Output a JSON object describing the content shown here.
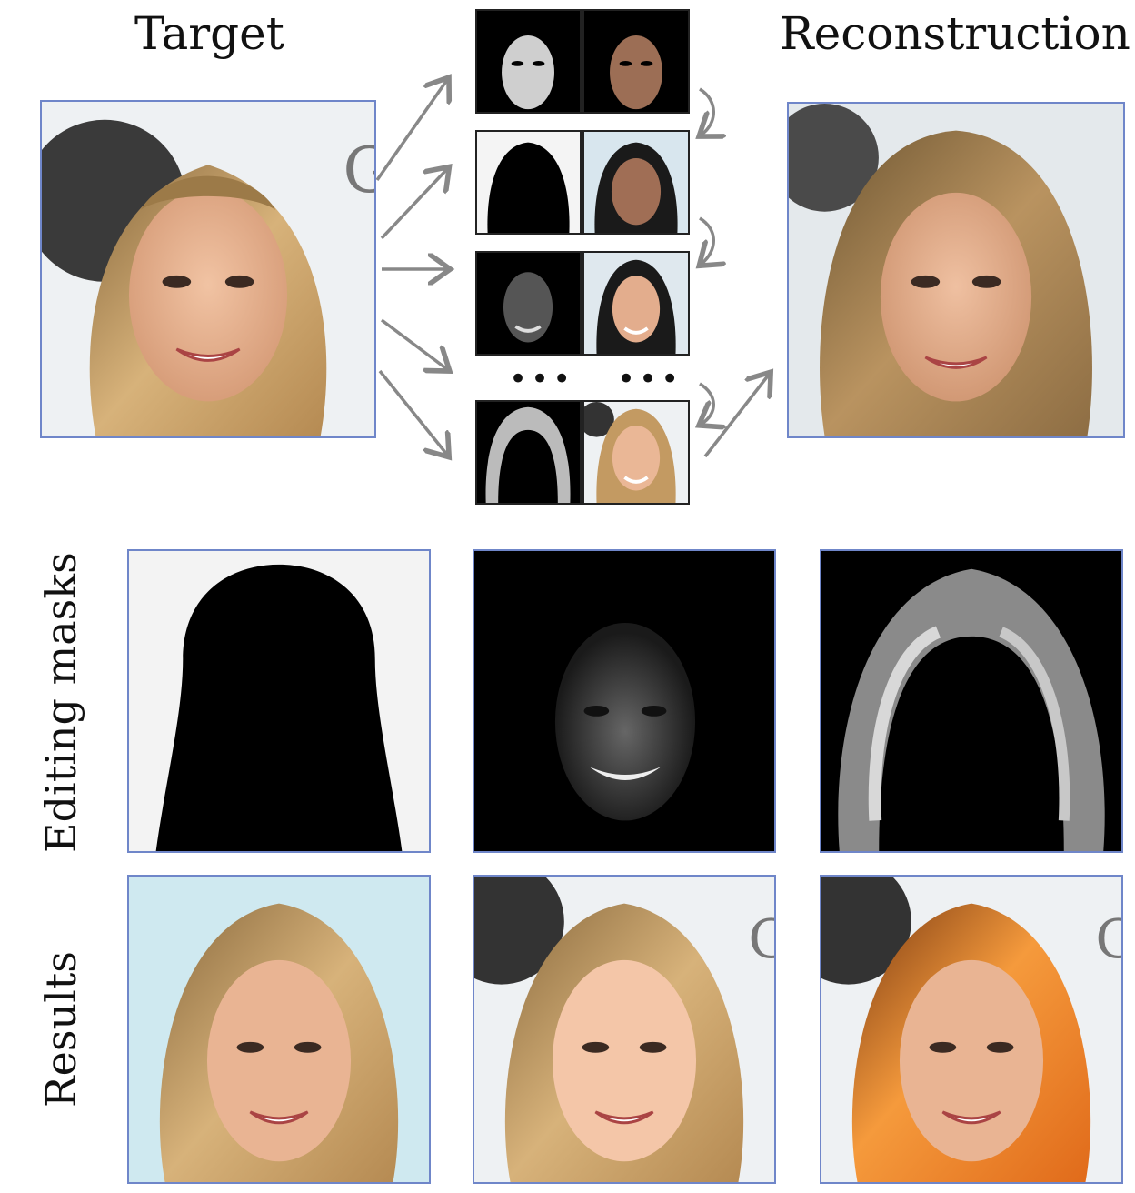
{
  "labels": {
    "target": "Target",
    "reconstruction": "Reconstruction",
    "editing_masks": "Editing masks",
    "results": "Results",
    "ellipsis_left": "•••",
    "ellipsis_right": "•••"
  },
  "colors": {
    "frame_border": "#6f86c9",
    "arrow": "#888888",
    "hair_blonde": "#c79b5a",
    "hair_orange": "#f08a2a",
    "skin": "#e6b08f",
    "background_light": "#dfeaf0"
  },
  "icons": {
    "arrow": "arrow-icon",
    "curved_arrow": "curved-arrow-icon"
  }
}
